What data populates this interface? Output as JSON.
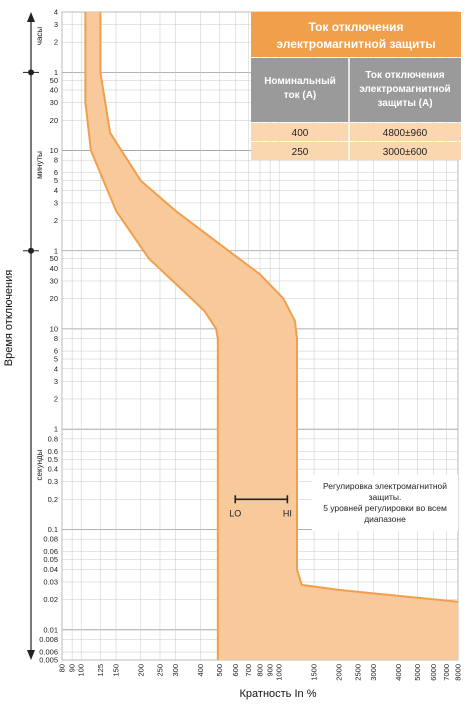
{
  "chart_data": {
    "type": "area",
    "title": "",
    "xlabel": "Кратность In %",
    "ylabel": "Время отключения",
    "x_scale": "log",
    "y_scale": "log",
    "xlim": [
      80,
      8000
    ],
    "ylim": [
      0.005,
      14400
    ],
    "grid": true,
    "x_ticks": [
      "80",
      "90",
      "100",
      "125",
      "150",
      "200",
      "250",
      "300",
      "400",
      "500",
      "600",
      "700",
      "800",
      "900",
      "1000",
      "1500",
      "2000",
      "2500",
      "3000",
      "4000",
      "5000",
      "6000",
      "7000",
      "8000"
    ],
    "y_tick_groups": [
      {
        "unit": "часы",
        "labels": [
          "4",
          "3",
          "2",
          "1"
        ]
      },
      {
        "unit": "минуты",
        "labels": [
          "50",
          "40",
          "30",
          "20",
          "10",
          "8",
          "6",
          "5",
          "4",
          "3",
          "2",
          "1"
        ]
      },
      {
        "unit": "секунды",
        "labels": [
          "50",
          "40",
          "30",
          "20",
          "10",
          "8",
          "6",
          "5",
          "4",
          "3",
          "2",
          "1",
          "0.8",
          "0.6",
          "0.5",
          "0.4",
          "0.3",
          "0.2",
          "0.1",
          "0.08",
          "0.06",
          "0.05",
          "0.04",
          "0.03",
          "0.02",
          "0.01",
          "0.008",
          "0.006",
          "0.005"
        ]
      }
    ],
    "series": [
      {
        "role": "lower-bound",
        "points": [
          [
            105,
            14400
          ],
          [
            105,
            1800
          ],
          [
            112,
            600
          ],
          [
            150,
            150
          ],
          [
            220,
            50
          ],
          [
            320,
            25
          ],
          [
            420,
            15
          ],
          [
            480,
            10
          ],
          [
            490,
            8
          ],
          [
            490,
            0.005
          ]
        ]
      },
      {
        "role": "upper-bound",
        "points": [
          [
            125,
            14400
          ],
          [
            125,
            3600
          ],
          [
            140,
            900
          ],
          [
            200,
            300
          ],
          [
            300,
            150
          ],
          [
            500,
            70
          ],
          [
            800,
            35
          ],
          [
            1050,
            20
          ],
          [
            1200,
            12
          ],
          [
            1230,
            8
          ],
          [
            1230,
            0.04
          ],
          [
            1300,
            0.028
          ],
          [
            2000,
            0.025
          ],
          [
            8000,
            0.019
          ]
        ]
      }
    ],
    "fill_color": "#f8c99a",
    "line_color": "#f0a04b",
    "annotation": {
      "lines": [
        "Регулировка электромагнитной",
        "защиты.",
        "5 уровней регулировки во всем",
        "диапазоне"
      ],
      "range_from": "LO",
      "range_to": "HI",
      "range_x": [
        600,
        1100
      ],
      "range_y": 0.2
    },
    "table": {
      "title_lines": [
        "Ток отключения",
        "электромагнитной защиты"
      ],
      "col1_header_lines": [
        "Номинальный",
        "ток (А)"
      ],
      "col2_header_lines": [
        "Ток отключения",
        "электромагнитной",
        "защиты (А)"
      ],
      "rows": [
        {
          "rated": "400",
          "trip": "4800±960"
        },
        {
          "rated": "250",
          "trip": "3000±600"
        }
      ],
      "header_color": "#f0a04b",
      "subheader_color": "#9a9a9a",
      "row_color": "#fbd7b0"
    }
  }
}
